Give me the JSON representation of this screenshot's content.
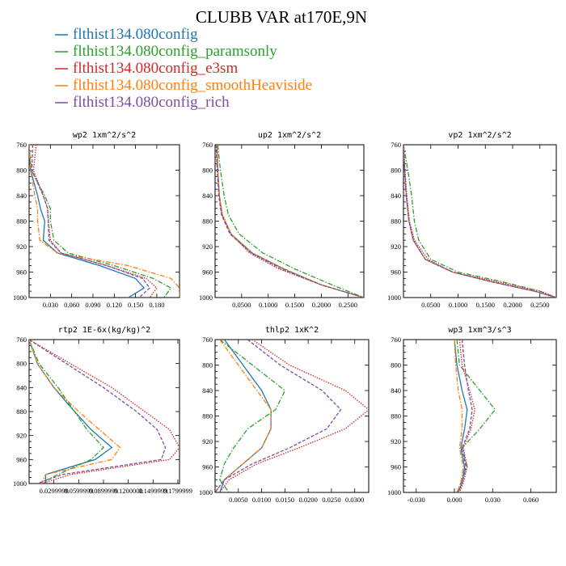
{
  "title": "CLUBB VAR at170E,9N",
  "legend": [
    {
      "label": "flthist134.080config",
      "color": "#1f77b4",
      "dash": "solid"
    },
    {
      "label": "flthist134.080config_paramsonly",
      "color": "#2ca02c",
      "dash": "dashdot"
    },
    {
      "label": "flthist134.080config_e3sm",
      "color": "#d62728",
      "dash": "dot"
    },
    {
      "label": "flthist134.080config_smoothHeaviside",
      "color": "#ff7f0e",
      "dash": "dashdot"
    },
    {
      "label": "flthist134.080config_rich",
      "color": "#7b4ea3",
      "dash": "dash"
    }
  ],
  "chart_data": [
    {
      "type": "line",
      "title": "wp2  1xm^2/s^2",
      "xlim": [
        0.0,
        0.212
      ],
      "ylim": [
        760,
        1000
      ],
      "xticks": [
        0.03,
        0.06,
        0.09,
        0.12,
        0.15,
        0.18
      ],
      "xtick_labels": [
        "0.030",
        "0.060",
        "0.090",
        "0.120",
        "0.150",
        "0.180"
      ],
      "yticks": [
        760,
        800,
        840,
        880,
        920,
        960,
        1000
      ],
      "series": [
        {
          "x": [
            0.0,
            0.002,
            0.012,
            0.016,
            0.022,
            0.02,
            0.04,
            0.1,
            0.15,
            0.162,
            0.14
          ],
          "y": [
            760,
            800,
            840,
            860,
            880,
            910,
            930,
            950,
            970,
            985,
            1000
          ]
        },
        {
          "x": [
            0.0,
            0.003,
            0.022,
            0.03,
            0.03,
            0.035,
            0.055,
            0.12,
            0.175,
            0.2,
            0.19
          ],
          "y": [
            760,
            800,
            840,
            860,
            880,
            910,
            930,
            950,
            970,
            985,
            1000
          ]
        },
        {
          "x": [
            0.01,
            0.006,
            0.02,
            0.026,
            0.027,
            0.03,
            0.045,
            0.11,
            0.165,
            0.18,
            0.17
          ],
          "y": [
            760,
            800,
            840,
            860,
            880,
            910,
            930,
            950,
            970,
            985,
            1000
          ]
        },
        {
          "x": [
            0.0,
            0.002,
            0.008,
            0.012,
            0.012,
            0.015,
            0.04,
            0.14,
            0.2,
            0.212,
            0.212
          ],
          "y": [
            760,
            800,
            840,
            860,
            880,
            910,
            930,
            950,
            970,
            985,
            1000
          ]
        },
        {
          "x": [
            0.005,
            0.004,
            0.02,
            0.026,
            0.027,
            0.028,
            0.045,
            0.11,
            0.16,
            0.17,
            0.155
          ],
          "y": [
            760,
            800,
            840,
            860,
            880,
            910,
            930,
            950,
            970,
            985,
            1000
          ]
        }
      ]
    },
    {
      "type": "line",
      "title": "up2  1xm^2/s^2",
      "xlim": [
        0.0,
        0.28
      ],
      "ylim": [
        760,
        1000
      ],
      "xticks": [
        0.05,
        0.1,
        0.15,
        0.2,
        0.25
      ],
      "xtick_labels": [
        "0.0500",
        "0.1000",
        "0.1500",
        "0.2000",
        "0.2500"
      ],
      "yticks": [
        760,
        800,
        840,
        880,
        920,
        960,
        1000
      ],
      "series": [
        {
          "x": [
            0.003,
            0.005,
            0.008,
            0.013,
            0.03,
            0.07,
            0.13,
            0.2,
            0.28
          ],
          "y": [
            760,
            800,
            840,
            870,
            900,
            930,
            955,
            980,
            1000
          ]
        },
        {
          "x": [
            0.005,
            0.01,
            0.017,
            0.025,
            0.045,
            0.09,
            0.15,
            0.22,
            0.28
          ],
          "y": [
            760,
            800,
            840,
            870,
            900,
            930,
            955,
            980,
            1000
          ]
        },
        {
          "x": [
            0.004,
            0.005,
            0.008,
            0.014,
            0.03,
            0.065,
            0.12,
            0.2,
            0.28
          ],
          "y": [
            760,
            800,
            840,
            870,
            900,
            930,
            955,
            980,
            1000
          ]
        },
        {
          "x": [
            0.003,
            0.005,
            0.008,
            0.013,
            0.03,
            0.07,
            0.13,
            0.2,
            0.28
          ],
          "y": [
            760,
            800,
            840,
            870,
            900,
            930,
            955,
            980,
            1000
          ]
        },
        {
          "x": [
            0.002,
            0.004,
            0.007,
            0.012,
            0.028,
            0.068,
            0.125,
            0.2,
            0.28
          ],
          "y": [
            760,
            800,
            840,
            870,
            900,
            930,
            955,
            980,
            1000
          ]
        }
      ]
    },
    {
      "type": "line",
      "title": "vp2  1xm^2/s^2",
      "xlim": [
        0.0,
        0.28
      ],
      "ylim": [
        760,
        1000
      ],
      "xticks": [
        0.05,
        0.1,
        0.15,
        0.2,
        0.25
      ],
      "xtick_labels": [
        "0.0500",
        "0.1000",
        "0.1500",
        "0.2000",
        "0.2500"
      ],
      "yticks": [
        760,
        800,
        840,
        880,
        920,
        960,
        1000
      ],
      "series": [
        {
          "x": [
            0.0,
            0.002,
            0.005,
            0.01,
            0.018,
            0.04,
            0.09,
            0.16,
            0.24,
            0.28
          ],
          "y": [
            760,
            800,
            840,
            880,
            910,
            940,
            960,
            975,
            990,
            1000
          ]
        },
        {
          "x": [
            0.0,
            0.008,
            0.015,
            0.02,
            0.028,
            0.05,
            0.1,
            0.18,
            0.25,
            0.28
          ],
          "y": [
            760,
            800,
            840,
            880,
            910,
            940,
            960,
            975,
            990,
            1000
          ]
        },
        {
          "x": [
            0.0,
            0.003,
            0.006,
            0.011,
            0.02,
            0.045,
            0.09,
            0.17,
            0.25,
            0.28
          ],
          "y": [
            760,
            800,
            840,
            880,
            910,
            940,
            960,
            975,
            990,
            1000
          ]
        },
        {
          "x": [
            0.0,
            0.002,
            0.005,
            0.01,
            0.018,
            0.04,
            0.09,
            0.16,
            0.24,
            0.28
          ],
          "y": [
            760,
            800,
            840,
            880,
            910,
            940,
            960,
            975,
            990,
            1000
          ]
        },
        {
          "x": [
            0.0,
            0.002,
            0.005,
            0.01,
            0.018,
            0.04,
            0.09,
            0.16,
            0.24,
            0.28
          ],
          "y": [
            760,
            800,
            840,
            880,
            910,
            940,
            960,
            975,
            990,
            1000
          ]
        }
      ]
    },
    {
      "type": "line",
      "title": "rtp2  1E-6x(kg/kg)^2",
      "xlim": [
        0.0,
        0.182
      ],
      "ylim": [
        760,
        1000
      ],
      "xticks": [
        0.03,
        0.06,
        0.09,
        0.12,
        0.15,
        0.18
      ],
      "xtick_labels": [
        "0.0299999",
        "0.0599999",
        "0.0899999",
        "0.1200000",
        "0.1499999",
        "0.1799999"
      ],
      "yticks": [
        760,
        800,
        840,
        880,
        920,
        960,
        1000
      ],
      "series": [
        {
          "x": [
            0.0,
            0.01,
            0.03,
            0.055,
            0.075,
            0.1,
            0.08,
            0.02,
            0.02
          ],
          "y": [
            760,
            800,
            840,
            880,
            910,
            940,
            960,
            985,
            1000
          ]
        },
        {
          "x": [
            0.0,
            0.012,
            0.035,
            0.055,
            0.07,
            0.09,
            0.075,
            0.035,
            0.012
          ],
          "y": [
            760,
            800,
            840,
            880,
            910,
            940,
            960,
            985,
            1000
          ]
        },
        {
          "x": [
            0.0,
            0.05,
            0.1,
            0.14,
            0.17,
            0.182,
            0.17,
            0.05,
            0.015
          ],
          "y": [
            760,
            800,
            840,
            880,
            910,
            940,
            960,
            985,
            1000
          ]
        },
        {
          "x": [
            0.0,
            0.01,
            0.03,
            0.06,
            0.085,
            0.11,
            0.1,
            0.02,
            0.015
          ],
          "y": [
            760,
            800,
            840,
            880,
            910,
            940,
            960,
            985,
            1000
          ]
        },
        {
          "x": [
            0.0,
            0.045,
            0.09,
            0.13,
            0.155,
            0.165,
            0.16,
            0.04,
            0.01
          ],
          "y": [
            760,
            800,
            840,
            880,
            910,
            940,
            960,
            985,
            1000
          ]
        }
      ]
    },
    {
      "type": "line",
      "title": "thlp2  1xK^2",
      "xlim": [
        0.0,
        0.033
      ],
      "ylim": [
        760,
        1000
      ],
      "xticks": [
        0.005,
        0.01,
        0.015,
        0.02,
        0.025,
        0.03
      ],
      "xtick_labels": [
        "0.0050",
        "0.0100",
        "0.0150",
        "0.0200",
        "0.0250",
        "0.0300"
      ],
      "yticks": [
        760,
        800,
        840,
        880,
        920,
        960,
        1000
      ],
      "series": [
        {
          "x": [
            0.002,
            0.006,
            0.01,
            0.012,
            0.012,
            0.01,
            0.006,
            0.002,
            0.001
          ],
          "y": [
            760,
            800,
            840,
            870,
            900,
            930,
            955,
            980,
            1000
          ]
        },
        {
          "x": [
            0.001,
            0.008,
            0.015,
            0.013,
            0.007,
            0.004,
            0.002,
            0.001,
            0.003
          ],
          "y": [
            760,
            800,
            840,
            870,
            900,
            930,
            955,
            980,
            1000
          ]
        },
        {
          "x": [
            0.008,
            0.016,
            0.028,
            0.033,
            0.028,
            0.018,
            0.009,
            0.003,
            0.001
          ],
          "y": [
            760,
            800,
            840,
            870,
            900,
            930,
            955,
            980,
            1000
          ]
        },
        {
          "x": [
            0.001,
            0.005,
            0.009,
            0.012,
            0.012,
            0.01,
            0.006,
            0.002,
            0.0
          ],
          "y": [
            760,
            800,
            840,
            870,
            900,
            930,
            955,
            980,
            1000
          ]
        },
        {
          "x": [
            0.007,
            0.014,
            0.023,
            0.027,
            0.024,
            0.016,
            0.008,
            0.002,
            0.0
          ],
          "y": [
            760,
            800,
            840,
            870,
            900,
            930,
            955,
            980,
            1000
          ]
        }
      ]
    },
    {
      "type": "line",
      "title": "wp3  1xm^3/s^3",
      "xlim": [
        -0.04,
        0.08
      ],
      "ylim": [
        760,
        1000
      ],
      "xticks": [
        -0.03,
        0.0,
        0.03,
        0.06
      ],
      "xtick_labels": [
        "-0.030",
        "0.000",
        "0.030",
        "0.060"
      ],
      "yticks": [
        760,
        800,
        840,
        880,
        920,
        960,
        1000
      ],
      "series": [
        {
          "x": [
            0.0,
            0.002,
            0.006,
            0.01,
            0.008,
            0.005,
            0.008,
            0.006,
            0.003
          ],
          "y": [
            760,
            800,
            840,
            870,
            900,
            930,
            960,
            985,
            1000
          ]
        },
        {
          "x": [
            0.002,
            0.004,
            0.02,
            0.032,
            0.02,
            0.006,
            0.01,
            0.005,
            0.002
          ],
          "y": [
            760,
            800,
            840,
            870,
            900,
            930,
            960,
            985,
            1000
          ]
        },
        {
          "x": [
            0.004,
            0.006,
            0.012,
            0.016,
            0.013,
            0.007,
            0.01,
            0.007,
            0.004
          ],
          "y": [
            760,
            800,
            840,
            870,
            900,
            930,
            960,
            985,
            1000
          ]
        },
        {
          "x": [
            0.0,
            0.001,
            0.003,
            0.006,
            0.006,
            0.004,
            0.007,
            0.005,
            0.002
          ],
          "y": [
            760,
            800,
            840,
            870,
            900,
            930,
            960,
            985,
            1000
          ]
        },
        {
          "x": [
            0.006,
            0.008,
            0.011,
            0.014,
            0.012,
            0.006,
            0.009,
            0.006,
            0.003
          ],
          "y": [
            760,
            800,
            840,
            870,
            900,
            930,
            960,
            985,
            1000
          ]
        }
      ]
    }
  ]
}
